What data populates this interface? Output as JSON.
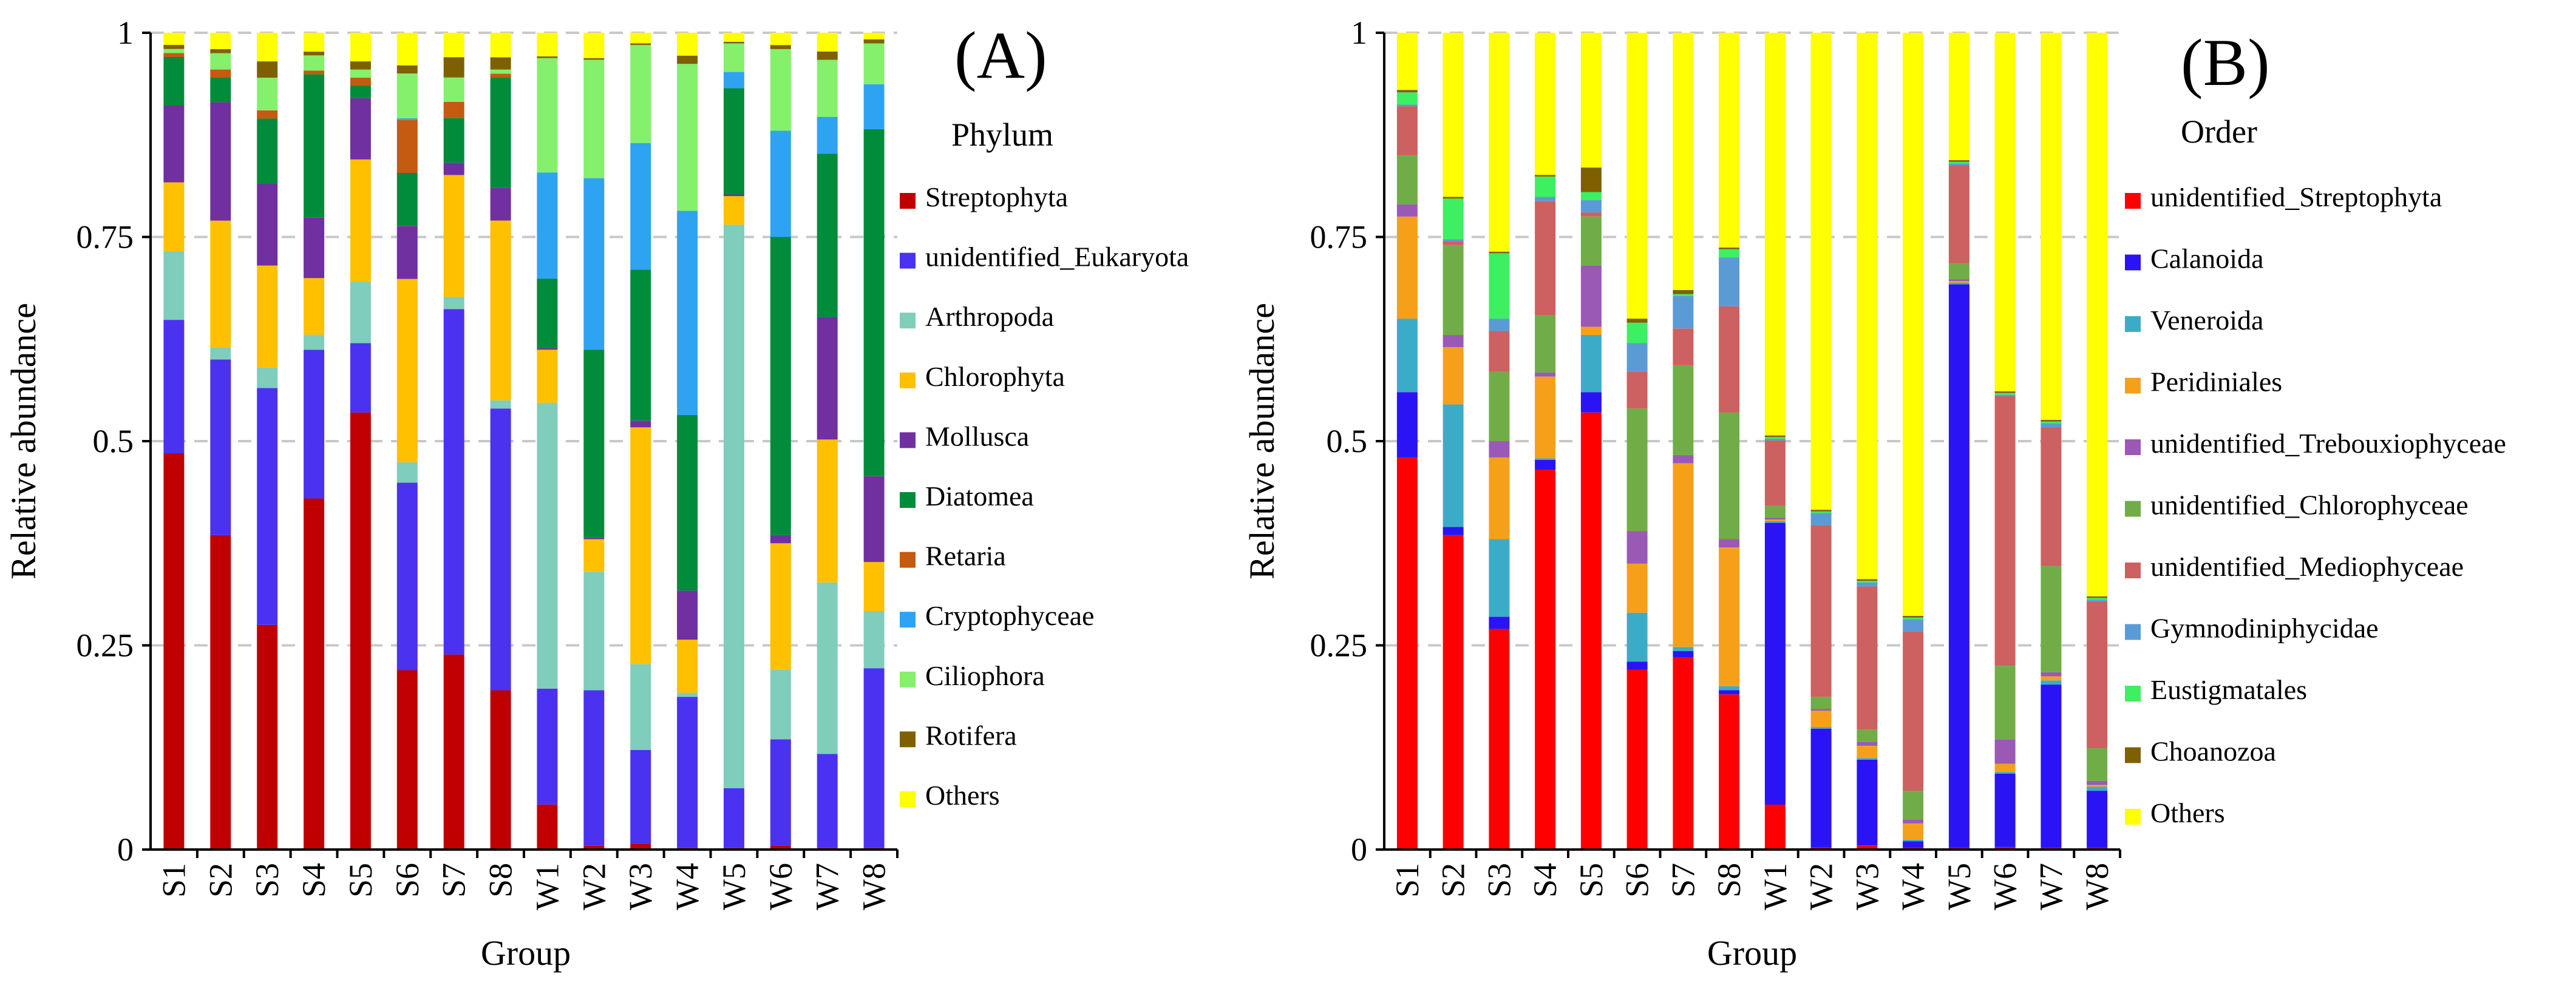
{
  "colors": {
    "Streptophyta": "#c00000",
    "unidentified_Eukaryota": "#4b32f0",
    "Arthropoda": "#7fcdbb",
    "Chlorophyta": "#ffc000",
    "Mollusca": "#7030a0",
    "Diatomea": "#008c3a",
    "Retaria": "#c55a11",
    "Cryptophyceae": "#2ea3f2",
    "Ciliophora": "#84f06c",
    "Rotifera": "#7f6000",
    "Others": "#ffff00",
    "unidentified_Streptophyta": "#ff0000",
    "Calanoida": "#2a14f5",
    "Veneroida": "#3bacc8",
    "Peridiniales": "#f6a01a",
    "unidentified_Trebouxiophyceae": "#9b59b6",
    "unidentified_Chlorophyceae": "#70ad47",
    "unidentified_Mediophyceae": "#cd6060",
    "Gymnodiniphycidae": "#5b9bd5",
    "Eustigmatales": "#3cf062",
    "Choanozoa": "#7f6000"
  },
  "chart_data": [
    {
      "type": "bar",
      "stacked": true,
      "panel_label": "(A)",
      "legend_title": "Phylum",
      "xlabel": "Group",
      "ylabel": "Relative abundance",
      "ylim": [
        0,
        1
      ],
      "yticks": [
        "0",
        "0.25",
        "0.5",
        "0.75",
        "1"
      ],
      "grid": "horizontal dashed",
      "categories": [
        "S1",
        "S2",
        "S3",
        "S4",
        "S5",
        "S6",
        "S7",
        "S8",
        "W1",
        "W2",
        "W3",
        "W4",
        "W5",
        "W6",
        "W7",
        "W8"
      ],
      "series": [
        {
          "name": "Streptophyta",
          "values": [
            0.49,
            0.385,
            0.275,
            0.465,
            0.535,
            0.22,
            0.24,
            0.195,
            0.055,
            0.005,
            0.007,
            0.002,
            0.002,
            0.005,
            0.002,
            0.002
          ]
        },
        {
          "name": "unidentified_Eukaryota",
          "values": [
            0.165,
            0.215,
            0.29,
            0.197,
            0.085,
            0.23,
            0.425,
            0.345,
            0.142,
            0.19,
            0.115,
            0.185,
            0.073,
            0.13,
            0.115,
            0.22
          ]
        },
        {
          "name": "Arthropoda",
          "values": [
            0.085,
            0.015,
            0.025,
            0.02,
            0.075,
            0.025,
            0.015,
            0.01,
            0.35,
            0.145,
            0.105,
            0.005,
            0.69,
            0.085,
            0.21,
            0.07
          ]
        },
        {
          "name": "Chlorophyta",
          "values": [
            0.085,
            0.155,
            0.125,
            0.075,
            0.15,
            0.225,
            0.15,
            0.22,
            0.065,
            0.04,
            0.29,
            0.065,
            0.035,
            0.155,
            0.175,
            0.06
          ]
        },
        {
          "name": "Mollusca",
          "values": [
            0.095,
            0.145,
            0.1,
            0.08,
            0.075,
            0.065,
            0.015,
            0.04,
            0.002,
            0.002,
            0.008,
            0.06,
            0.002,
            0.01,
            0.15,
            0.105
          ]
        },
        {
          "name": "Diatomea",
          "values": [
            0.06,
            0.03,
            0.08,
            0.19,
            0.015,
            0.065,
            0.055,
            0.135,
            0.085,
            0.23,
            0.185,
            0.215,
            0.13,
            0.365,
            0.2,
            0.425
          ]
        },
        {
          "name": "Retaria",
          "values": [
            0.005,
            0.01,
            0.01,
            0.005,
            0.01,
            0.065,
            0.02,
            0.005,
            0,
            0,
            0,
            0,
            0,
            0,
            0,
            0
          ]
        },
        {
          "name": "Cryptophyceae",
          "values": [
            0,
            0,
            0,
            0,
            0,
            0.002,
            0,
            0,
            0.13,
            0.21,
            0.155,
            0.25,
            0.02,
            0.13,
            0.045,
            0.055
          ]
        },
        {
          "name": "Ciliophora",
          "values": [
            0.005,
            0.02,
            0.04,
            0.02,
            0.01,
            0.055,
            0.03,
            0.005,
            0.14,
            0.145,
            0.12,
            0.18,
            0.035,
            0.1,
            0.07,
            0.05
          ]
        },
        {
          "name": "Rotifera",
          "values": [
            0.005,
            0.005,
            0.02,
            0.005,
            0.01,
            0.01,
            0.025,
            0.015,
            0.002,
            0.002,
            0.002,
            0.01,
            0.002,
            0.005,
            0.01,
            0.005
          ]
        },
        {
          "name": "Others",
          "values": [
            0.015,
            0.02,
            0.035,
            0.025,
            0.035,
            0.04,
            0.03,
            0.03,
            0.029,
            0.031,
            0.013,
            0.028,
            0.011,
            0.015,
            0.023,
            0.008
          ]
        }
      ]
    },
    {
      "type": "bar",
      "stacked": true,
      "panel_label": "(B)",
      "legend_title": "Order",
      "xlabel": "Group",
      "ylabel": "Relative abundance",
      "ylim": [
        0,
        1
      ],
      "yticks": [
        "0",
        "0.25",
        "0.5",
        "0.75",
        "1"
      ],
      "grid": "horizontal dashed",
      "categories": [
        "S1",
        "S2",
        "S3",
        "S4",
        "S5",
        "S6",
        "S7",
        "S8",
        "W1",
        "W2",
        "W3",
        "W4",
        "W5",
        "W6",
        "W7",
        "W8"
      ],
      "series": [
        {
          "name": "unidentified_Streptophyta",
          "values": [
            0.48,
            0.385,
            0.27,
            0.465,
            0.535,
            0.22,
            0.235,
            0.19,
            0.055,
            0.003,
            0.005,
            0.002,
            0.002,
            0.003,
            0.002,
            0.002
          ]
        },
        {
          "name": "Calanoida",
          "values": [
            0.08,
            0.01,
            0.015,
            0.012,
            0.025,
            0.01,
            0.008,
            0.005,
            0.345,
            0.145,
            0.105,
            0.008,
            0.69,
            0.09,
            0.2,
            0.07
          ]
        },
        {
          "name": "Veneroida",
          "values": [
            0.09,
            0.15,
            0.095,
            0.002,
            0.07,
            0.06,
            0.005,
            0.005,
            0.002,
            0.002,
            0.002,
            0.002,
            0.002,
            0.002,
            0.005,
            0.005
          ]
        },
        {
          "name": "Peridiniales",
          "values": [
            0.125,
            0.07,
            0.1,
            0.1,
            0.01,
            0.06,
            0.225,
            0.17,
            0.002,
            0.02,
            0.015,
            0.02,
            0.002,
            0.01,
            0.005,
            0.002
          ]
        },
        {
          "name": "unidentified_Trebouxiophyceae",
          "values": [
            0.015,
            0.015,
            0.02,
            0.005,
            0.075,
            0.04,
            0.01,
            0.01,
            0.002,
            0.002,
            0.005,
            0.005,
            0.002,
            0.03,
            0.005,
            0.005
          ]
        },
        {
          "name": "unidentified_Chlorophyceae",
          "values": [
            0.06,
            0.11,
            0.085,
            0.07,
            0.06,
            0.15,
            0.11,
            0.155,
            0.015,
            0.015,
            0.015,
            0.035,
            0.02,
            0.09,
            0.13,
            0.04
          ]
        },
        {
          "name": "unidentified_Mediophyceae",
          "values": [
            0.06,
            0.005,
            0.05,
            0.14,
            0.005,
            0.045,
            0.045,
            0.13,
            0.08,
            0.21,
            0.175,
            0.195,
            0.12,
            0.33,
            0.17,
            0.18
          ]
        },
        {
          "name": "Gymnodiniphycidae",
          "values": [
            0.002,
            0.002,
            0.015,
            0.005,
            0.015,
            0.035,
            0.04,
            0.06,
            0.002,
            0.015,
            0.005,
            0.015,
            0.002,
            0.002,
            0.005,
            0.002
          ]
        },
        {
          "name": "Eustigmatales",
          "values": [
            0.015,
            0.05,
            0.08,
            0.025,
            0.01,
            0.025,
            0.002,
            0.01,
            0.002,
            0.002,
            0.002,
            0.002,
            0.002,
            0.002,
            0.002,
            0.002
          ]
        },
        {
          "name": "Choanozoa",
          "values": [
            0.003,
            0.002,
            0.002,
            0.002,
            0.03,
            0.005,
            0.005,
            0.002,
            0.002,
            0.002,
            0.002,
            0.002,
            0.002,
            0.002,
            0.002,
            0.002
          ]
        },
        {
          "name": "Others",
          "values": [
            0.07,
            0.201,
            0.268,
            0.174,
            0.165,
            0.35,
            0.315,
            0.263,
            0.493,
            0.584,
            0.669,
            0.714,
            0.156,
            0.439,
            0.474,
            0.69
          ]
        }
      ]
    }
  ]
}
